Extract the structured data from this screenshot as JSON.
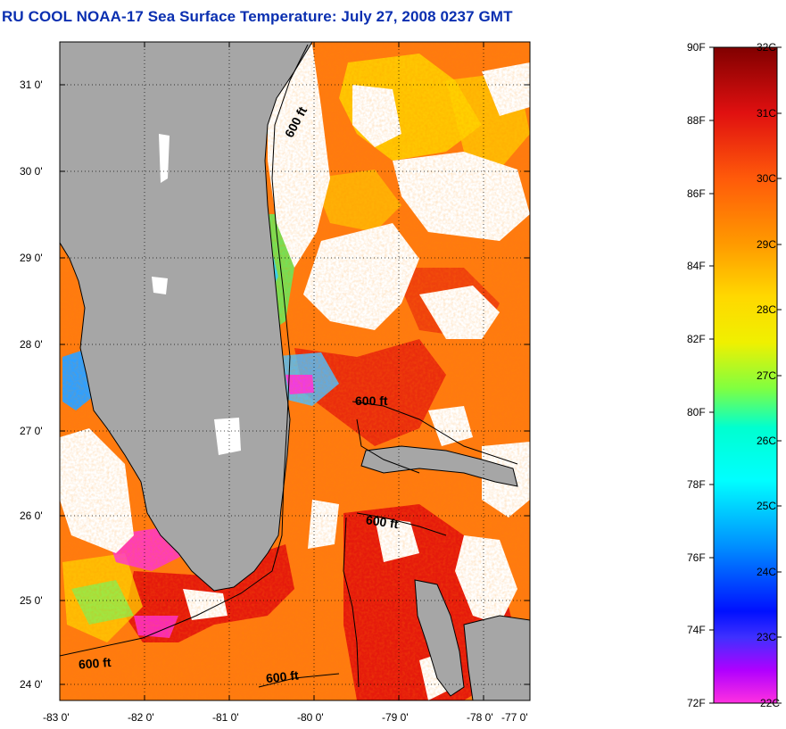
{
  "title": "RU COOL  NOAA-17  Sea Surface Temperature:  July 27, 2008 0237 GMT",
  "map": {
    "lat_labels": [
      "31 0'",
      "30 0'",
      "29 0'",
      "28 0'",
      "27 0'",
      "26 0'",
      "25 0'",
      "24 0'"
    ],
    "lon_labels": [
      "-83 0'",
      "-82 0'",
      "-81 0'",
      "-80 0'",
      "-79 0'",
      "-78 0'",
      "-77 0'"
    ],
    "isobath_labels": [
      "600 ft",
      "600 ft",
      "600 ft",
      "600 ft",
      "600 ft"
    ],
    "colors": {
      "land": "#a6a6a6",
      "cloud": "#ffffff",
      "ocean_warm": "#ff7a10",
      "ocean_hot": "#e01010"
    }
  },
  "colorbar": {
    "fahrenheit_labels": [
      "90F",
      "88F",
      "86F",
      "84F",
      "82F",
      "80F",
      "78F",
      "76F",
      "74F",
      "72F"
    ],
    "celsius_labels": [
      "32C",
      "31C",
      "30C",
      "29C",
      "28C",
      "27C",
      "26C",
      "25C",
      "24C",
      "23C",
      "22C"
    ],
    "gradient_colors": [
      "#800000",
      "#e01010",
      "#ff5a0a",
      "#ff9a00",
      "#ffd800",
      "#f0f000",
      "#80ff40",
      "#00ffd0",
      "#00ffff",
      "#0090ff",
      "#0010ff",
      "#4030ff",
      "#b000ff",
      "#ff30e0"
    ]
  }
}
